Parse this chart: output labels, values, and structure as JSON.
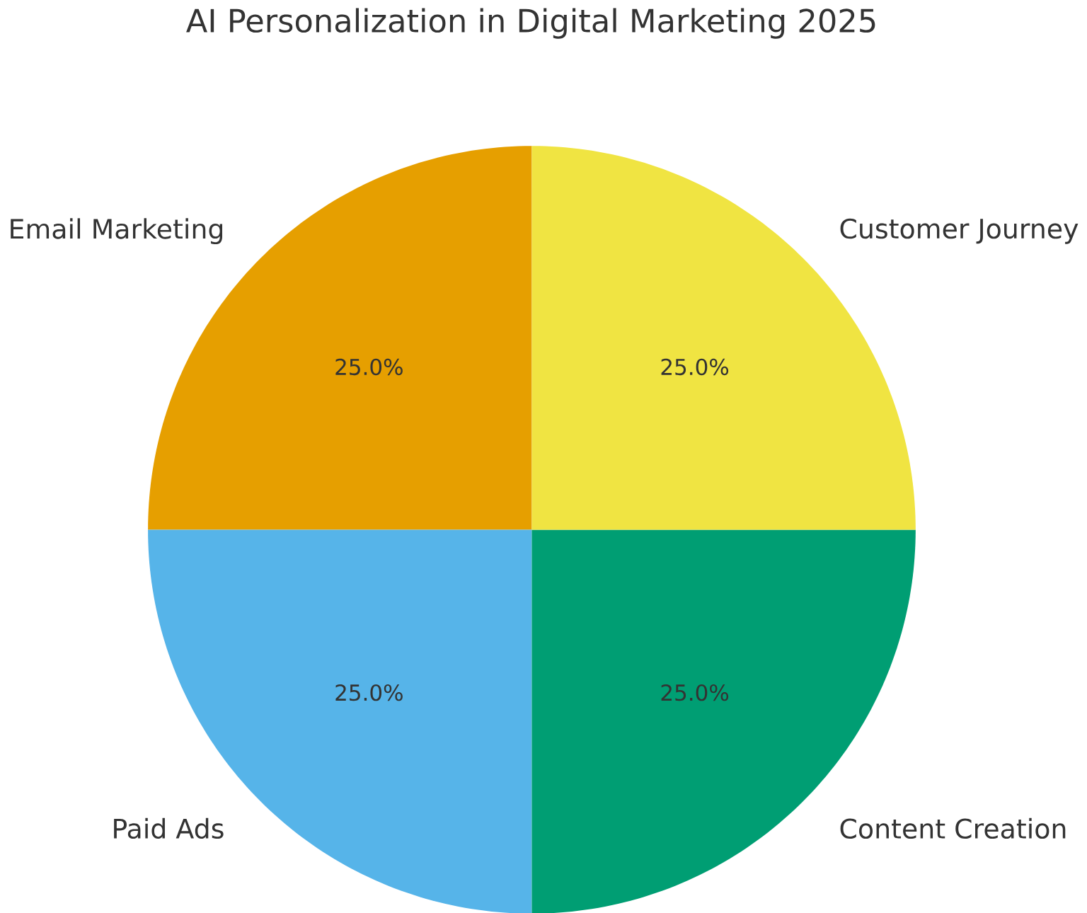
{
  "chart_data": {
    "type": "pie",
    "title": "AI Personalization in Digital Marketing 2025",
    "categories": [
      "Email Marketing",
      "Paid Ads",
      "Content Creation",
      "Customer Journey"
    ],
    "values": [
      25,
      25,
      25,
      25
    ],
    "colors": [
      "#e69f00",
      "#56b4e9",
      "#009e73",
      "#f0e442"
    ],
    "value_labels": [
      "25.0%",
      "25.0%",
      "25.0%",
      "25.0%"
    ]
  }
}
